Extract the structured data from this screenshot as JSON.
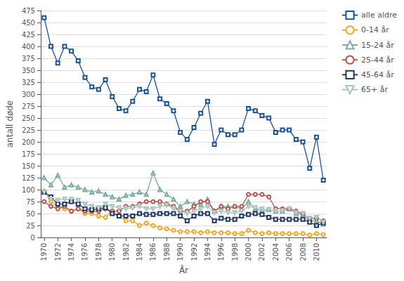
{
  "chart_data": {
    "type": "line",
    "xlabel": "År",
    "ylabel": "antall døde",
    "x": [
      1970,
      1971,
      1972,
      1973,
      1974,
      1975,
      1976,
      1977,
      1978,
      1979,
      1980,
      1981,
      1982,
      1983,
      1984,
      1985,
      1986,
      1987,
      1988,
      1989,
      1990,
      1991,
      1992,
      1993,
      1994,
      1995,
      1996,
      1997,
      1998,
      1999,
      2000,
      2001,
      2002,
      2003,
      2004,
      2005,
      2006,
      2007,
      2008,
      2009,
      2010,
      2011
    ],
    "xlim": [
      1969.5,
      2011.5
    ],
    "xticks": [
      1970,
      1972,
      1974,
      1976,
      1978,
      1980,
      1982,
      1984,
      1986,
      1988,
      1990,
      1992,
      1994,
      1996,
      1998,
      2000,
      2002,
      2004,
      2006,
      2008,
      2010
    ],
    "ylim": [
      0,
      475
    ],
    "yticks": [
      0,
      25,
      50,
      75,
      100,
      125,
      150,
      175,
      200,
      225,
      250,
      275,
      300,
      325,
      350,
      375,
      400,
      425,
      450,
      475
    ],
    "grid": true,
    "legend": "right",
    "series": [
      {
        "name": "alle aldre",
        "color": "#1A5494",
        "marker": "square",
        "values": [
          460,
          400,
          365,
          400,
          390,
          370,
          335,
          315,
          310,
          330,
          295,
          270,
          265,
          285,
          310,
          305,
          340,
          290,
          280,
          265,
          220,
          205,
          230,
          260,
          285,
          195,
          225,
          215,
          215,
          225,
          270,
          265,
          255,
          250,
          220,
          225,
          225,
          205,
          200,
          145,
          210,
          120
        ]
      },
      {
        "name": "0-14 år",
        "color": "#F4A723",
        "marker": "circle",
        "values": [
          97,
          75,
          65,
          60,
          55,
          60,
          50,
          50,
          45,
          42,
          55,
          45,
          35,
          35,
          25,
          30,
          25,
          20,
          18,
          15,
          12,
          12,
          12,
          10,
          12,
          10,
          10,
          10,
          8,
          8,
          15,
          10,
          8,
          10,
          8,
          8,
          8,
          8,
          8,
          5,
          8,
          6
        ]
      },
      {
        "name": "15-24 år",
        "color": "#7AADA0",
        "marker": "triangle",
        "values": [
          125,
          110,
          130,
          105,
          110,
          105,
          100,
          95,
          97,
          90,
          85,
          80,
          88,
          90,
          95,
          90,
          135,
          100,
          90,
          80,
          65,
          75,
          70,
          70,
          80,
          55,
          65,
          65,
          65,
          60,
          75,
          60,
          55,
          58,
          55,
          55,
          60,
          50,
          48,
          35,
          35,
          28
        ]
      },
      {
        "name": "25-44 år",
        "color": "#C0504D",
        "marker": "circle",
        "values": [
          75,
          65,
          60,
          65,
          55,
          60,
          55,
          55,
          55,
          60,
          55,
          55,
          65,
          65,
          70,
          75,
          75,
          75,
          70,
          65,
          55,
          55,
          65,
          75,
          75,
          55,
          65,
          60,
          65,
          65,
          90,
          90,
          90,
          85,
          60,
          60,
          60,
          55,
          50,
          40,
          40,
          35
        ]
      },
      {
        "name": "45-64 år",
        "color": "#1F3864",
        "marker": "square",
        "values": [
          95,
          85,
          70,
          70,
          75,
          70,
          60,
          58,
          60,
          62,
          50,
          45,
          45,
          45,
          50,
          48,
          48,
          50,
          50,
          50,
          45,
          35,
          45,
          50,
          50,
          35,
          40,
          38,
          38,
          45,
          48,
          50,
          48,
          42,
          38,
          38,
          38,
          38,
          38,
          32,
          25,
          30
        ]
      },
      {
        "name": "65+ år",
        "color": "#A8C5BC",
        "marker": "triangle-down",
        "values": [
          95,
          80,
          78,
          80,
          80,
          78,
          70,
          65,
          62,
          70,
          65,
          62,
          60,
          62,
          65,
          60,
          60,
          65,
          68,
          60,
          55,
          50,
          55,
          60,
          65,
          52,
          55,
          52,
          52,
          55,
          65,
          62,
          60,
          58,
          55,
          55,
          60,
          52,
          50,
          40,
          42,
          32
        ]
      }
    ]
  }
}
